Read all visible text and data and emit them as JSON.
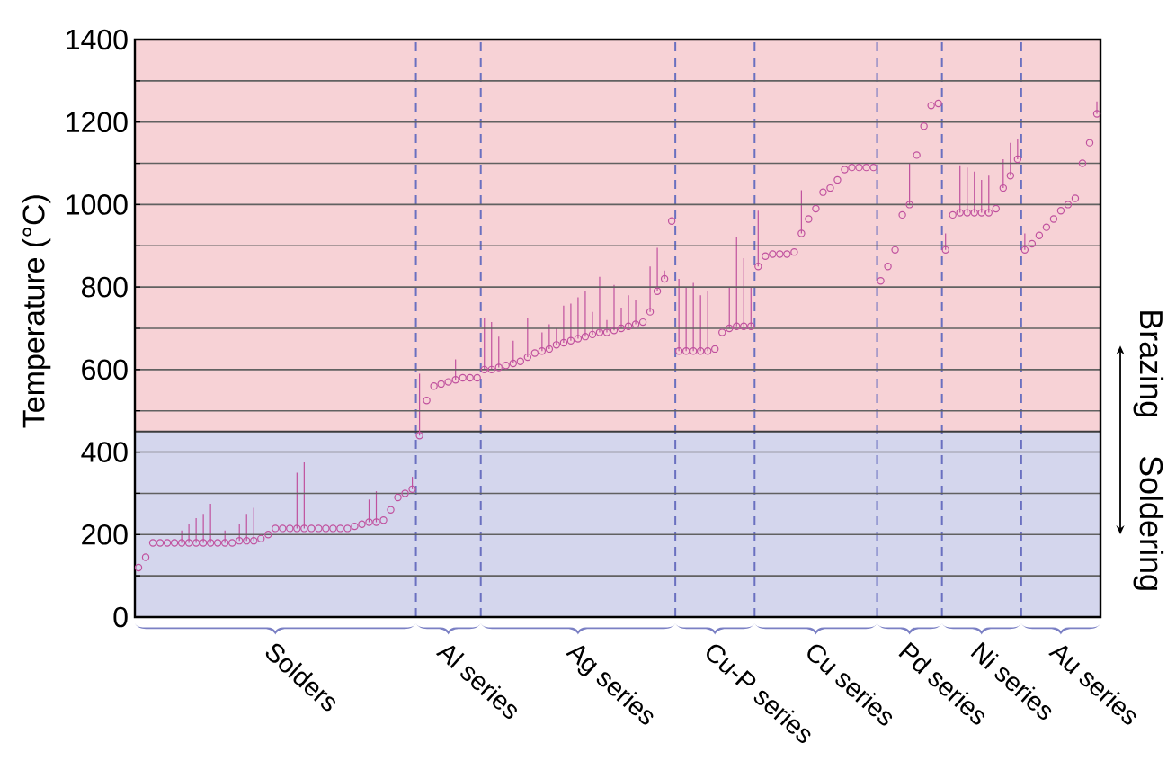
{
  "chart_data": {
    "type": "scatter",
    "ylabel": "Temperature (°C)",
    "categories": [
      null,
      null,
      null,
      null,
      null,
      null,
      null,
      null,
      null,
      null,
      null,
      null,
      null,
      null,
      null,
      null,
      null,
      null,
      null,
      "Solders",
      null,
      null,
      null,
      null,
      null,
      null,
      null,
      null,
      null,
      null,
      null,
      null,
      null,
      null,
      null,
      null,
      null,
      null,
      null,
      null,
      null,
      null,
      null,
      "Al series",
      null,
      null,
      null,
      null,
      null,
      null,
      null,
      null,
      null,
      null,
      null,
      null,
      null,
      null,
      null,
      null,
      null,
      "Ag series",
      null,
      null,
      null,
      null,
      null,
      null,
      null,
      null,
      null,
      null,
      null,
      null,
      null,
      null,
      null,
      null,
      null,
      null,
      "Cu-P series",
      null,
      null,
      null,
      null,
      null,
      null,
      null,
      null,
      null,
      null,
      null,
      null,
      null,
      "Cu series",
      null,
      null,
      null,
      null,
      null,
      null,
      null,
      null,
      null,
      null,
      null,
      null,
      "Pd series",
      null,
      null,
      null,
      null,
      null,
      null,
      null,
      null,
      null,
      "Ni series",
      null,
      null,
      null,
      null,
      null,
      null,
      null,
      null,
      null,
      null,
      "Au series",
      null,
      null,
      null,
      null,
      null
    ],
    "series": [
      {
        "color": "#c0519e",
        "values": [
          120,
          145,
          180,
          180,
          180,
          180,
          180,
          180,
          180,
          180,
          180,
          180,
          180,
          180,
          185,
          185,
          185,
          190,
          200,
          215,
          215,
          215,
          215,
          215,
          215,
          215,
          215,
          215,
          215,
          215,
          220,
          225,
          230,
          230,
          235,
          260,
          290,
          300,
          310,
          440,
          525,
          560,
          565,
          570,
          575,
          580,
          580,
          580,
          600,
          600,
          605,
          610,
          615,
          620,
          630,
          640,
          645,
          650,
          660,
          665,
          670,
          675,
          680,
          685,
          690,
          690,
          695,
          700,
          705,
          710,
          715,
          740,
          790,
          820,
          960,
          645,
          645,
          645,
          645,
          645,
          650,
          690,
          700,
          705,
          705,
          705,
          850,
          875,
          880,
          880,
          880,
          885,
          930,
          965,
          990,
          1030,
          1040,
          1060,
          1085,
          1090,
          1090,
          1090,
          1090,
          815,
          850,
          890,
          975,
          1000,
          1120,
          1190,
          1240,
          1245,
          890,
          975,
          980,
          980,
          980,
          980,
          980,
          990,
          1040,
          1070,
          1110,
          890,
          905,
          925,
          945,
          965,
          985,
          1000,
          1015,
          1100,
          1150,
          1220
        ],
        "errors": [
          null,
          null,
          null,
          null,
          null,
          null,
          [
            180,
            210
          ],
          [
            180,
            225
          ],
          [
            180,
            240
          ],
          [
            180,
            250
          ],
          [
            180,
            275
          ],
          null,
          [
            180,
            210
          ],
          null,
          [
            185,
            225
          ],
          [
            185,
            250
          ],
          [
            185,
            265
          ],
          null,
          null,
          null,
          null,
          null,
          [
            215,
            350
          ],
          [
            215,
            375
          ],
          null,
          null,
          null,
          null,
          null,
          null,
          null,
          null,
          [
            230,
            285
          ],
          [
            230,
            305
          ],
          null,
          null,
          null,
          null,
          [
            310,
            340
          ],
          [
            440,
            590
          ],
          null,
          null,
          null,
          null,
          [
            575,
            625
          ],
          null,
          null,
          null,
          [
            600,
            725
          ],
          [
            600,
            715
          ],
          [
            605,
            680
          ],
          null,
          [
            615,
            670
          ],
          null,
          [
            630,
            725
          ],
          null,
          [
            645,
            690
          ],
          [
            650,
            710
          ],
          [
            660,
            700
          ],
          [
            665,
            755
          ],
          [
            670,
            760
          ],
          [
            675,
            775
          ],
          [
            680,
            790
          ],
          [
            685,
            740
          ],
          [
            690,
            825
          ],
          [
            690,
            720
          ],
          [
            695,
            805
          ],
          [
            700,
            750
          ],
          [
            705,
            780
          ],
          [
            710,
            770
          ],
          null,
          [
            740,
            850
          ],
          [
            790,
            895
          ],
          [
            820,
            840
          ],
          null,
          [
            645,
            820
          ],
          [
            645,
            800
          ],
          [
            645,
            810
          ],
          [
            645,
            780
          ],
          [
            645,
            790
          ],
          null,
          null,
          [
            700,
            800
          ],
          [
            705,
            920
          ],
          [
            705,
            870
          ],
          [
            705,
            800
          ],
          [
            850,
            985
          ],
          null,
          null,
          null,
          null,
          null,
          [
            930,
            1035
          ],
          null,
          null,
          null,
          null,
          null,
          null,
          null,
          null,
          null,
          null,
          null,
          null,
          null,
          null,
          [
            1000,
            1100
          ],
          null,
          null,
          null,
          null,
          [
            890,
            930
          ],
          null,
          [
            980,
            1095
          ],
          [
            980,
            1090
          ],
          [
            980,
            1080
          ],
          [
            980,
            1060
          ],
          [
            980,
            1070
          ],
          null,
          [
            1040,
            1110
          ],
          [
            1070,
            1150
          ],
          [
            1110,
            1160
          ],
          [
            890,
            930
          ],
          null,
          null,
          null,
          null,
          null,
          null,
          null,
          null,
          null,
          [
            1220,
            1250
          ]
        ]
      }
    ],
    "marker": "circle",
    "ylim": [
      0,
      1400
    ],
    "yticks": [
      0,
      {
        "value": 100,
        "label": null
      },
      200,
      {
        "value": 300,
        "label": null
      },
      400,
      {
        "value": 500,
        "label": null
      },
      600,
      {
        "value": 700,
        "label": null
      },
      800,
      {
        "value": 900,
        "label": null
      },
      1000,
      {
        "value": 1100,
        "label": null
      },
      1200,
      {
        "value": 1300,
        "label": null
      },
      1400
    ],
    "grid": "y",
    "bands": [
      {
        "axis": "y",
        "from": 0,
        "to": 450,
        "label": "Soldering",
        "color": "#d4d6ed"
      },
      {
        "axis": "y",
        "from": 450,
        "to": 1400,
        "label": "Brazing",
        "color": "#f7d2d6"
      }
    ],
    "ref_lines": [
      {
        "axis": "y",
        "value": 450,
        "color": "#3c3c3c"
      }
    ]
  }
}
